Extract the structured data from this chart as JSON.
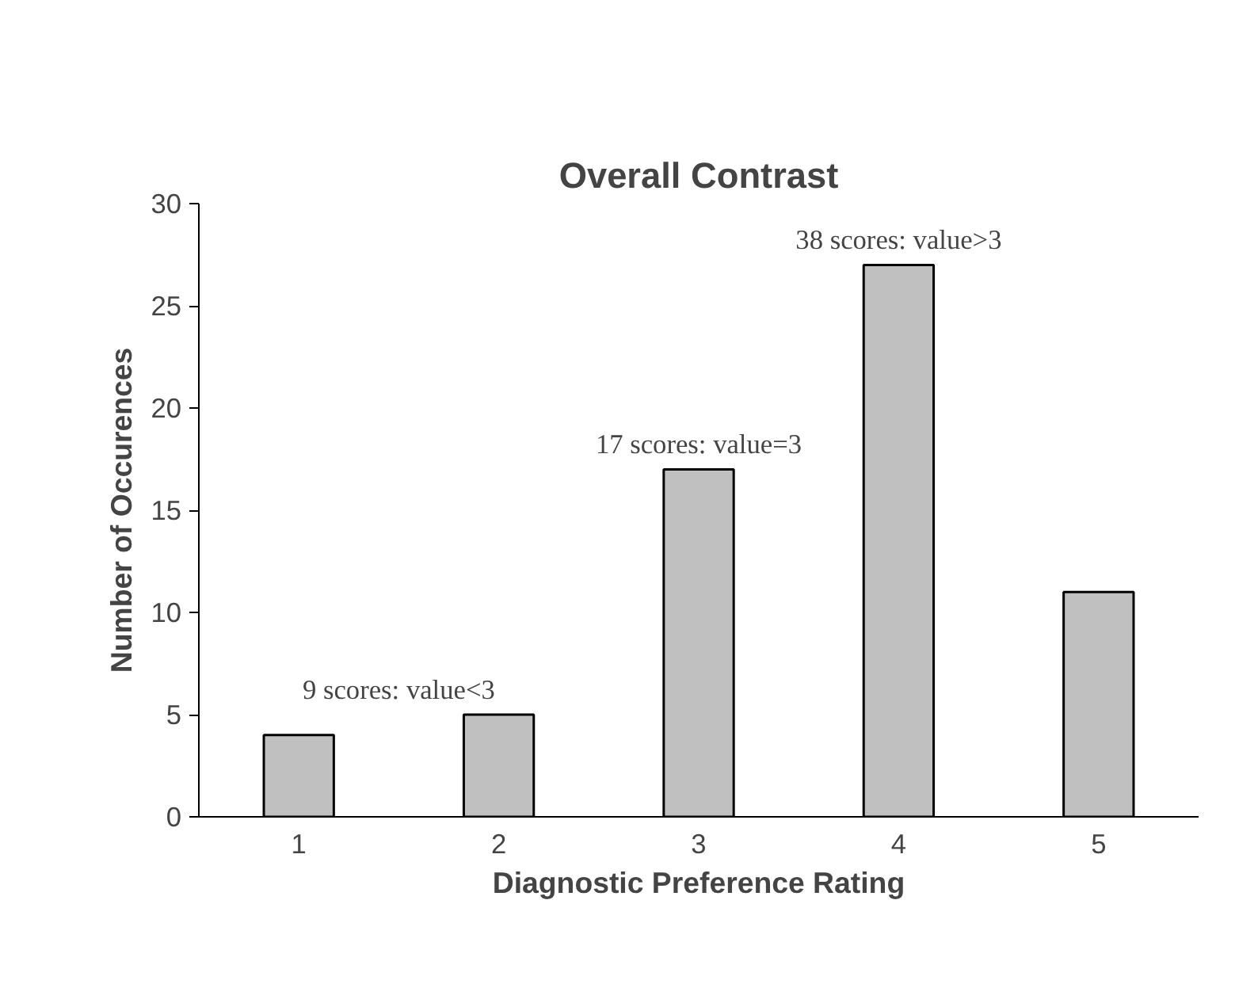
{
  "chart_data": {
    "type": "bar",
    "title": "Overall Contrast",
    "xlabel": "Diagnostic Preference Rating",
    "ylabel": "Number of Occurences",
    "categories": [
      "1",
      "2",
      "3",
      "4",
      "5"
    ],
    "values": [
      4,
      5,
      17,
      27,
      11
    ],
    "color": "#c0c0c0",
    "ylim": [
      0,
      30
    ],
    "yticks": [
      0,
      5,
      10,
      15,
      20,
      25,
      30
    ],
    "grid": false,
    "annotations": [
      "9 scores: value<3",
      {
        "text": "17 scores: value=3",
        "x": "3",
        "y": 17
      },
      {
        "text": "38 scores: value>3",
        "x": "4",
        "y": 27
      }
    ]
  }
}
